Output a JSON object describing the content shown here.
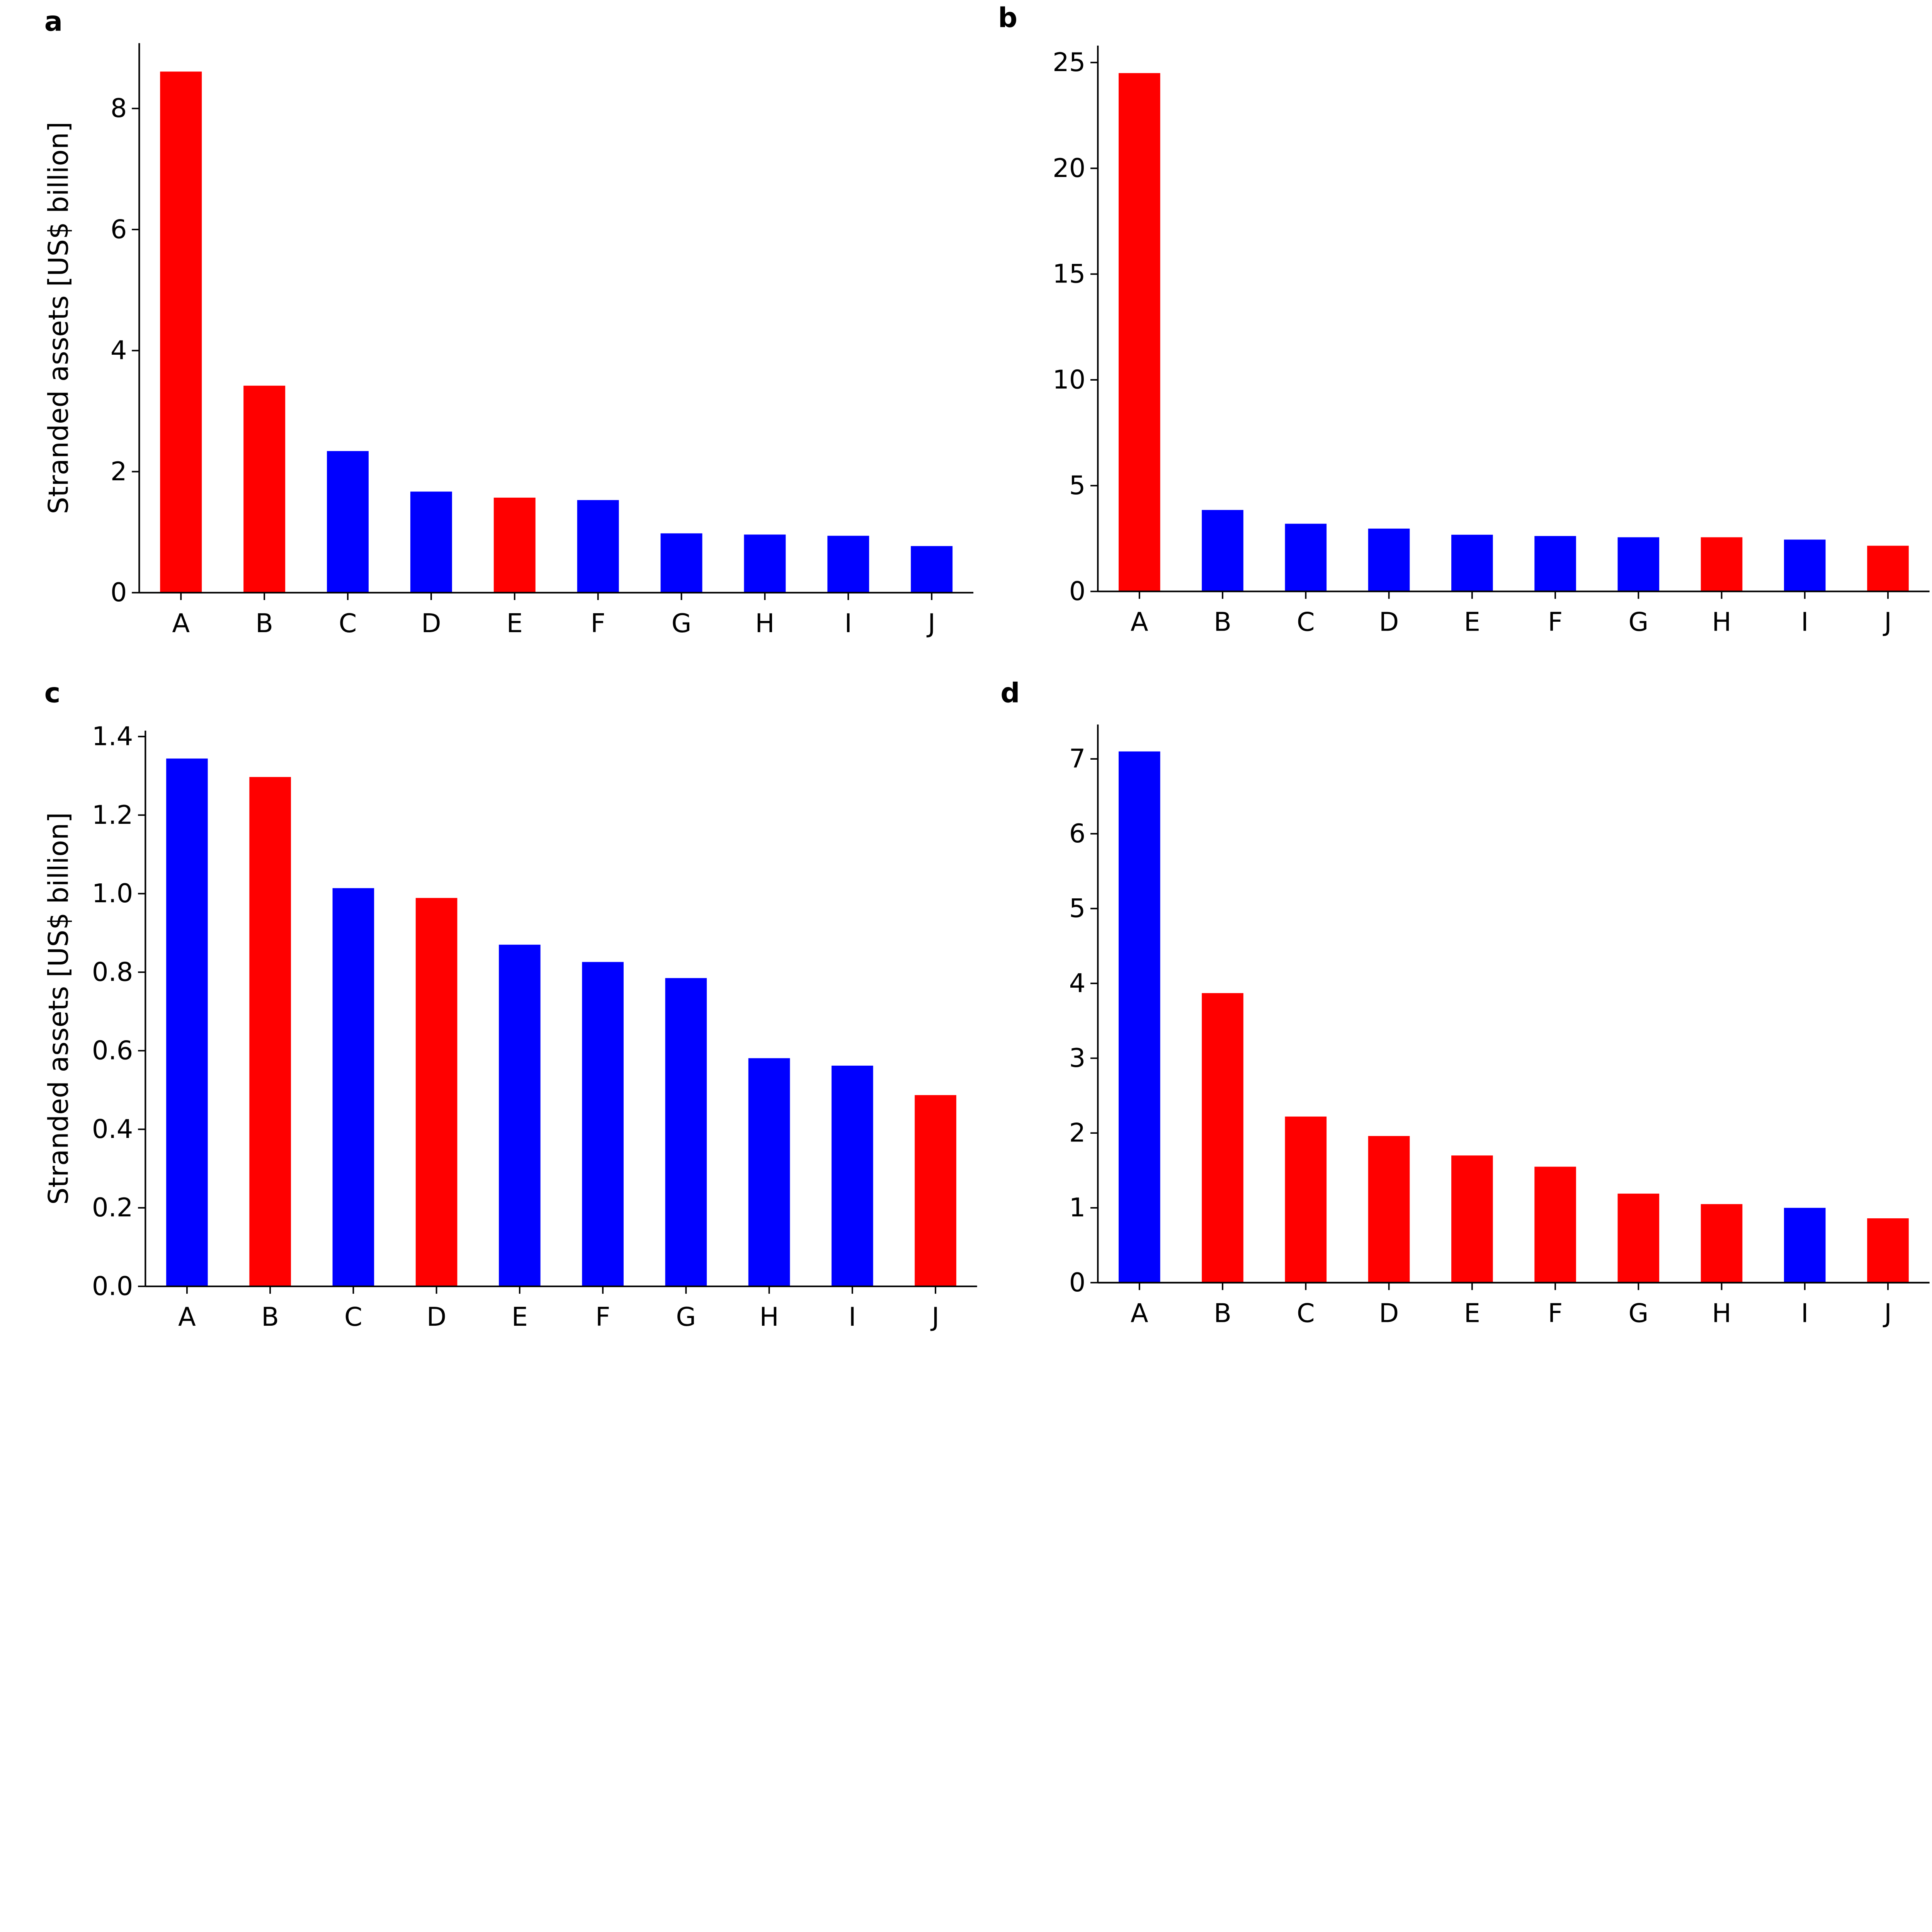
{
  "colors": {
    "red": "#ff0000",
    "blue": "#0000ff"
  },
  "chart_data": [
    {
      "panel": "a",
      "type": "bar",
      "categories": [
        "A",
        "B",
        "C",
        "D",
        "E",
        "F",
        "G",
        "H",
        "I",
        "J"
      ],
      "values": [
        8.61,
        3.42,
        2.34,
        1.67,
        1.57,
        1.53,
        0.98,
        0.96,
        0.94,
        0.77
      ],
      "bar_colors": [
        "#ff0000",
        "#ff0000",
        "#0000ff",
        "#0000ff",
        "#ff0000",
        "#0000ff",
        "#0000ff",
        "#0000ff",
        "#0000ff",
        "#0000ff"
      ],
      "ylabel": "Stranded assets [US$ billion]",
      "yticks": [
        0,
        2,
        4,
        6,
        8
      ],
      "ytick_labels": [
        "0",
        "2",
        "4",
        "6",
        "8"
      ],
      "ylim": [
        0,
        9.08
      ],
      "grid": false
    },
    {
      "panel": "b",
      "type": "bar",
      "categories": [
        "A",
        "B",
        "C",
        "D",
        "E",
        "F",
        "G",
        "H",
        "I",
        "J"
      ],
      "values": [
        24.5,
        3.85,
        3.2,
        2.97,
        2.68,
        2.62,
        2.56,
        2.56,
        2.45,
        2.16
      ],
      "bar_colors": [
        "#ff0000",
        "#0000ff",
        "#0000ff",
        "#0000ff",
        "#0000ff",
        "#0000ff",
        "#0000ff",
        "#ff0000",
        "#0000ff",
        "#ff0000"
      ],
      "ylabel": "",
      "yticks": [
        0,
        5,
        10,
        15,
        20,
        25
      ],
      "ytick_labels": [
        "0",
        "5",
        "10",
        "15",
        "20",
        "25"
      ],
      "ylim": [
        0,
        25.8
      ],
      "grid": false
    },
    {
      "panel": "c",
      "type": "bar",
      "categories": [
        "A",
        "B",
        "C",
        "D",
        "E",
        "F",
        "G",
        "H",
        "I",
        "J"
      ],
      "values": [
        1.344,
        1.297,
        1.014,
        0.989,
        0.87,
        0.826,
        0.785,
        0.581,
        0.562,
        0.487
      ],
      "bar_colors": [
        "#0000ff",
        "#ff0000",
        "#0000ff",
        "#ff0000",
        "#0000ff",
        "#0000ff",
        "#0000ff",
        "#0000ff",
        "#0000ff",
        "#ff0000"
      ],
      "ylabel": "Stranded assets [US$ billion]",
      "yticks": [
        0,
        0.2,
        0.4,
        0.6,
        0.8,
        1.0,
        1.2,
        1.4
      ],
      "ytick_labels": [
        "0.0",
        "0.2",
        "0.4",
        "0.6",
        "0.8",
        "1.0",
        "1.2",
        "1.4"
      ],
      "ylim": [
        0,
        1.415
      ],
      "grid": false
    },
    {
      "panel": "d",
      "type": "bar",
      "categories": [
        "A",
        "B",
        "C",
        "D",
        "E",
        "F",
        "G",
        "H",
        "I",
        "J"
      ],
      "values": [
        7.1,
        3.87,
        2.22,
        1.96,
        1.7,
        1.55,
        1.19,
        1.05,
        1.0,
        0.86
      ],
      "bar_colors": [
        "#0000ff",
        "#ff0000",
        "#ff0000",
        "#ff0000",
        "#ff0000",
        "#ff0000",
        "#ff0000",
        "#ff0000",
        "#0000ff",
        "#ff0000"
      ],
      "ylabel": "",
      "yticks": [
        0,
        1,
        2,
        3,
        4,
        5,
        6,
        7
      ],
      "ytick_labels": [
        "0",
        "1",
        "2",
        "3",
        "4",
        "5",
        "6",
        "7"
      ],
      "ylim": [
        0,
        7.46
      ],
      "grid": false
    }
  ]
}
